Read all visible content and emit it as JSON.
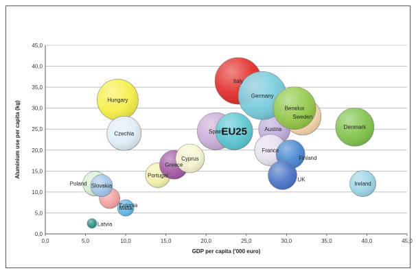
{
  "chart_data": {
    "type": "bubble",
    "title": "",
    "xlabel": "GDP per capita ('000 euro)",
    "ylabel": "Aluminium use per capita (kg)",
    "xlim": [
      0,
      45
    ],
    "ylim": [
      0,
      45
    ],
    "x_ticks": [
      "0,0",
      "5,0",
      "10,0",
      "15,0",
      "20,0",
      "25,0",
      "30,0",
      "35,0",
      "40,0",
      "45,0"
    ],
    "y_ticks": [
      "0,0",
      "5,0",
      "10,0",
      "15,0",
      "20,0",
      "25,0",
      "30,0",
      "35,0",
      "40,0",
      "45,0"
    ],
    "grid": true,
    "points": [
      {
        "label": "Latvia",
        "x": 5.8,
        "y": 2.5,
        "size": 7,
        "color": "#1f8a80"
      },
      {
        "label": "Malta",
        "x": 10.0,
        "y": 6.2,
        "size": 12,
        "color": "#59b4e6"
      },
      {
        "label": "Estonia",
        "x": 8.0,
        "y": 8.5,
        "size": 15,
        "color": "#f29a9a"
      },
      {
        "label": "Poland",
        "x": 6.2,
        "y": 12.0,
        "size": 18,
        "color": "#d5eecf"
      },
      {
        "label": "Slovakia",
        "x": 7.0,
        "y": 11.5,
        "size": 16,
        "color": "#9ec3ea"
      },
      {
        "label": "Hungary",
        "x": 9.0,
        "y": 32.0,
        "size": 30,
        "color": "#f5ee3c"
      },
      {
        "label": "Czechia",
        "x": 9.8,
        "y": 24.0,
        "size": 25,
        "color": "#dcecf6"
      },
      {
        "label": "Portugal",
        "x": 14.0,
        "y": 14.0,
        "size": 18,
        "color": "#f4f0a6"
      },
      {
        "label": "Greece",
        "x": 16.0,
        "y": 16.5,
        "size": 21,
        "color": "#9c4f9f"
      },
      {
        "label": "Cyprus",
        "x": 18.0,
        "y": 18.0,
        "size": 21,
        "color": "#f6f4cc"
      },
      {
        "label": "Spain",
        "x": 21.2,
        "y": 24.5,
        "size": 27,
        "color": "#c6a6d4"
      },
      {
        "label": "EU25",
        "x": 23.5,
        "y": 24.5,
        "size": 27,
        "color": "#4fc4cf"
      },
      {
        "label": "Italy",
        "x": 24.0,
        "y": 36.5,
        "size": 34,
        "color": "#e0201c"
      },
      {
        "label": "Austria",
        "x": 28.5,
        "y": 25.0,
        "size": 23,
        "color": "#b9a7d7"
      },
      {
        "label": "Germany",
        "x": 27.0,
        "y": 33.0,
        "size": 35,
        "color": "#6ec7d9"
      },
      {
        "label": "France",
        "x": 28.0,
        "y": 20.0,
        "size": 23,
        "color": "#e7def0"
      },
      {
        "label": "Finland",
        "x": 30.5,
        "y": 19.0,
        "size": 21,
        "color": "#3c7fcb"
      },
      {
        "label": "UK",
        "x": 29.5,
        "y": 14.0,
        "size": 21,
        "color": "#3d6bc3"
      },
      {
        "label": "Sweden",
        "x": 32.0,
        "y": 28.0,
        "size": 27,
        "color": "#f8d3a3"
      },
      {
        "label": "Benelux",
        "x": 31.0,
        "y": 30.0,
        "size": 31,
        "color": "#8cc63e"
      },
      {
        "label": "Denmark",
        "x": 38.5,
        "y": 25.5,
        "size": 28,
        "color": "#77c03f"
      },
      {
        "label": "Ireland",
        "x": 39.5,
        "y": 12.0,
        "size": 19,
        "color": "#95d3e4"
      }
    ]
  }
}
